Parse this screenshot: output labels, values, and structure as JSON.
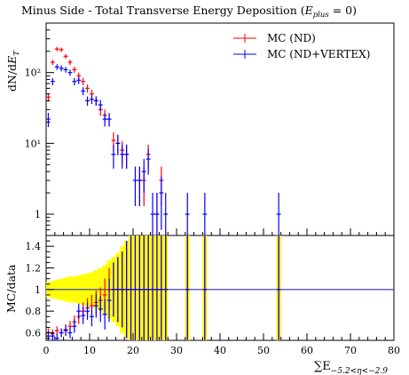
{
  "chart_data": [
    {
      "type": "scatter",
      "title": "Minus Side - Total Transverse Energy Deposition",
      "title_condition": "(E_plus = 0)",
      "ylabel": "dN/dE_T",
      "xlim": [
        0,
        80
      ],
      "ylim_log": [
        0.5,
        500
      ],
      "y_scale": "log",
      "y_ticks": [
        {
          "value": 1,
          "label": "1"
        },
        {
          "value": 10,
          "label": "10¹"
        },
        {
          "value": 100,
          "label": "10²"
        }
      ],
      "legend": {
        "placement": "top-right"
      },
      "series": [
        {
          "name": "MC (ND)",
          "color": "#ff0000",
          "points": [
            {
              "x": 0.5,
              "y": 45,
              "err": 6
            },
            {
              "x": 1.5,
              "y": 140,
              "err": 12
            },
            {
              "x": 2.5,
              "y": 215,
              "err": 15
            },
            {
              "x": 3.5,
              "y": 210,
              "err": 15
            },
            {
              "x": 4.5,
              "y": 170,
              "err": 13
            },
            {
              "x": 5.5,
              "y": 140,
              "err": 12
            },
            {
              "x": 6.5,
              "y": 110,
              "err": 11
            },
            {
              "x": 7.5,
              "y": 90,
              "err": 10
            },
            {
              "x": 8.5,
              "y": 75,
              "err": 9
            },
            {
              "x": 9.5,
              "y": 60,
              "err": 8
            },
            {
              "x": 10.5,
              "y": 50,
              "err": 7
            },
            {
              "x": 11.5,
              "y": 40,
              "err": 6
            },
            {
              "x": 12.5,
              "y": 30,
              "err": 5.5
            },
            {
              "x": 13.5,
              "y": 25,
              "err": 5
            },
            {
              "x": 14.5,
              "y": 22,
              "err": 4.7
            },
            {
              "x": 15.5,
              "y": 11,
              "err": 3.3
            },
            {
              "x": 16.5,
              "y": 10,
              "err": 3.2
            },
            {
              "x": 17.5,
              "y": 8,
              "err": 2.8
            },
            {
              "x": 18.5,
              "y": 7,
              "err": 2.6
            },
            {
              "x": 21.5,
              "y": 3,
              "err": 1.7
            },
            {
              "x": 22.5,
              "y": 3,
              "err": 1.7
            },
            {
              "x": 23.5,
              "y": 7,
              "err": 2.6
            },
            {
              "x": 25.5,
              "y": 1,
              "err": 1
            },
            {
              "x": 26.5,
              "y": 3,
              "err": 1.7
            }
          ]
        },
        {
          "name": "MC (ND+VERTEX)",
          "color": "#0000ff",
          "points": [
            {
              "x": 0.5,
              "y": 22,
              "err": 5
            },
            {
              "x": 1.5,
              "y": 75,
              "err": 9
            },
            {
              "x": 2.5,
              "y": 120,
              "err": 11
            },
            {
              "x": 3.5,
              "y": 115,
              "err": 11
            },
            {
              "x": 4.5,
              "y": 110,
              "err": 10
            },
            {
              "x": 5.5,
              "y": 100,
              "err": 10
            },
            {
              "x": 6.5,
              "y": 75,
              "err": 9
            },
            {
              "x": 7.5,
              "y": 78,
              "err": 9
            },
            {
              "x": 8.5,
              "y": 55,
              "err": 7
            },
            {
              "x": 9.5,
              "y": 40,
              "err": 6
            },
            {
              "x": 10.5,
              "y": 42,
              "err": 6
            },
            {
              "x": 11.5,
              "y": 40,
              "err": 6
            },
            {
              "x": 12.5,
              "y": 35,
              "err": 6
            },
            {
              "x": 13.5,
              "y": 22,
              "err": 4.7
            },
            {
              "x": 14.5,
              "y": 22,
              "err": 4.7
            },
            {
              "x": 15.5,
              "y": 7,
              "err": 2.6
            },
            {
              "x": 16.5,
              "y": 10,
              "err": 3.2
            },
            {
              "x": 17.5,
              "y": 7,
              "err": 2.6
            },
            {
              "x": 18.5,
              "y": 7,
              "err": 2.6
            },
            {
              "x": 20.5,
              "y": 3,
              "err": 1.7
            },
            {
              "x": 21.5,
              "y": 3,
              "err": 1.7
            },
            {
              "x": 22.5,
              "y": 4,
              "err": 2
            },
            {
              "x": 23.5,
              "y": 6,
              "err": 2.4
            },
            {
              "x": 24.5,
              "y": 1,
              "err": 1
            },
            {
              "x": 25.5,
              "y": 1,
              "err": 1
            },
            {
              "x": 26.5,
              "y": 2,
              "err": 1.4
            },
            {
              "x": 27.5,
              "y": 1,
              "err": 1
            },
            {
              "x": 32.5,
              "y": 1,
              "err": 1
            },
            {
              "x": 36.5,
              "y": 1,
              "err": 1
            },
            {
              "x": 53.5,
              "y": 1,
              "err": 1
            }
          ]
        }
      ]
    },
    {
      "type": "scatter",
      "ylabel": "MC/data",
      "xlabel": "∑E",
      "xlabel_subscript": "−5.2<η<−2.9",
      "xlim": [
        0,
        80
      ],
      "ylim": [
        0.53,
        1.5
      ],
      "x_ticks": [
        0,
        10,
        20,
        30,
        40,
        50,
        60,
        70,
        80
      ],
      "y_ticks": [
        0.6,
        0.8,
        1,
        1.2,
        1.4
      ],
      "reference_line": 1,
      "band_color": "#ffff00",
      "band": [
        {
          "x": 0.5,
          "lo": 0.93,
          "hi": 1.07
        },
        {
          "x": 1.5,
          "lo": 0.92,
          "hi": 1.08
        },
        {
          "x": 2.5,
          "lo": 0.91,
          "hi": 1.09
        },
        {
          "x": 3.5,
          "lo": 0.9,
          "hi": 1.1
        },
        {
          "x": 4.5,
          "lo": 0.89,
          "hi": 1.11
        },
        {
          "x": 5.5,
          "lo": 0.88,
          "hi": 1.12
        },
        {
          "x": 6.5,
          "lo": 0.88,
          "hi": 1.12
        },
        {
          "x": 7.5,
          "lo": 0.87,
          "hi": 1.13
        },
        {
          "x": 8.5,
          "lo": 0.86,
          "hi": 1.14
        },
        {
          "x": 9.5,
          "lo": 0.85,
          "hi": 1.15
        },
        {
          "x": 10.5,
          "lo": 0.84,
          "hi": 1.16
        },
        {
          "x": 11.5,
          "lo": 0.82,
          "hi": 1.18
        },
        {
          "x": 12.5,
          "lo": 0.8,
          "hi": 1.2
        },
        {
          "x": 13.5,
          "lo": 0.77,
          "hi": 1.23
        },
        {
          "x": 14.5,
          "lo": 0.73,
          "hi": 1.27
        },
        {
          "x": 15.5,
          "lo": 0.7,
          "hi": 1.3
        },
        {
          "x": 16.5,
          "lo": 0.66,
          "hi": 1.34
        },
        {
          "x": 17.5,
          "lo": 0.6,
          "hi": 1.4
        },
        {
          "x": 18.5,
          "lo": 0.55,
          "hi": 1.45
        },
        {
          "x": 19.5,
          "lo": 0.53,
          "hi": 1.5
        },
        {
          "x": 20.5,
          "lo": 0.53,
          "hi": 1.5
        },
        {
          "x": 21.5,
          "lo": 0.53,
          "hi": 1.5
        },
        {
          "x": 22.5,
          "lo": 0.53,
          "hi": 1.5
        },
        {
          "x": 23.5,
          "lo": 0.53,
          "hi": 1.5
        },
        {
          "x": 24.5,
          "lo": 0.53,
          "hi": 1.5
        },
        {
          "x": 25.5,
          "lo": 0.53,
          "hi": 1.5
        },
        {
          "x": 26.5,
          "lo": 0.53,
          "hi": 1.5
        },
        {
          "x": 27.5,
          "lo": 0.53,
          "hi": 1.5
        },
        {
          "x": 32.5,
          "lo": 0.53,
          "hi": 1.5
        },
        {
          "x": 36.5,
          "lo": 0.53,
          "hi": 1.5
        },
        {
          "x": 53.5,
          "lo": 0.53,
          "hi": 1.5
        }
      ],
      "series": [
        {
          "name": "MC (ND)",
          "color": "#ff0000",
          "points": [
            {
              "x": 0.5,
              "y": 0.6,
              "err": 0.04
            },
            {
              "x": 1.5,
              "y": 0.59,
              "err": 0.04
            },
            {
              "x": 2.5,
              "y": 0.62,
              "err": 0.04
            },
            {
              "x": 3.5,
              "y": 0.6,
              "err": 0.04
            },
            {
              "x": 4.5,
              "y": 0.63,
              "err": 0.05
            },
            {
              "x": 5.5,
              "y": 0.66,
              "err": 0.05
            },
            {
              "x": 6.5,
              "y": 0.7,
              "err": 0.06
            },
            {
              "x": 7.5,
              "y": 0.75,
              "err": 0.07
            },
            {
              "x": 8.5,
              "y": 0.8,
              "err": 0.08
            },
            {
              "x": 9.5,
              "y": 0.83,
              "err": 0.09
            },
            {
              "x": 10.5,
              "y": 0.85,
              "err": 0.1
            },
            {
              "x": 11.5,
              "y": 0.88,
              "err": 0.11
            },
            {
              "x": 12.5,
              "y": 0.9,
              "err": 0.12
            },
            {
              "x": 13.5,
              "y": 0.95,
              "err": 0.15
            },
            {
              "x": 14.5,
              "y": 1.0,
              "err": 0.2
            },
            {
              "x": 15.5,
              "y": 1.0,
              "err": 0.25
            },
            {
              "x": 16.5,
              "y": 1.0,
              "err": 0.3
            },
            {
              "x": 17.5,
              "y": 1.0,
              "err": 0.35
            },
            {
              "x": 18.5,
              "y": 1.0,
              "err": 0.45
            },
            {
              "x": 19.5,
              "y": 1.0,
              "err": 0.5
            },
            {
              "x": 20.5,
              "y": 1.0,
              "err": 0.5
            },
            {
              "x": 21.5,
              "y": 1.0,
              "err": 0.5
            },
            {
              "x": 22.5,
              "y": 1.0,
              "err": 0.5
            },
            {
              "x": 23.5,
              "y": 1.0,
              "err": 0.5
            },
            {
              "x": 24.5,
              "y": 1.0,
              "err": 0.5
            },
            {
              "x": 25.5,
              "y": 1.0,
              "err": 0.5
            },
            {
              "x": 26.5,
              "y": 1.0,
              "err": 0.5
            },
            {
              "x": 27.5,
              "y": 1.0,
              "err": 0.5
            },
            {
              "x": 32.5,
              "y": 1.0,
              "err": 0.5
            },
            {
              "x": 36.5,
              "y": 1.0,
              "err": 0.5
            },
            {
              "x": 53.5,
              "y": 1.0,
              "err": 0.5
            }
          ]
        },
        {
          "name": "MC (ND+VERTEX)",
          "color": "#0000ff",
          "points": [
            {
              "x": 0.5,
              "y": 0.57,
              "err": 0.04
            },
            {
              "x": 1.5,
              "y": 0.57,
              "err": 0.04
            },
            {
              "x": 2.5,
              "y": 0.55,
              "err": 0.04
            },
            {
              "x": 3.5,
              "y": 0.6,
              "err": 0.04
            },
            {
              "x": 4.5,
              "y": 0.62,
              "err": 0.05
            },
            {
              "x": 5.5,
              "y": 0.6,
              "err": 0.05
            },
            {
              "x": 6.5,
              "y": 0.66,
              "err": 0.06
            },
            {
              "x": 7.5,
              "y": 0.8,
              "err": 0.07
            },
            {
              "x": 8.5,
              "y": 0.76,
              "err": 0.08
            },
            {
              "x": 9.5,
              "y": 0.8,
              "err": 0.08
            },
            {
              "x": 10.5,
              "y": 0.75,
              "err": 0.09
            },
            {
              "x": 11.5,
              "y": 0.85,
              "err": 0.11
            },
            {
              "x": 12.5,
              "y": 0.82,
              "err": 0.12
            },
            {
              "x": 13.5,
              "y": 0.77,
              "err": 0.14
            },
            {
              "x": 14.5,
              "y": 0.9,
              "err": 0.2
            },
            {
              "x": 15.5,
              "y": 1.0,
              "err": 0.25
            },
            {
              "x": 16.5,
              "y": 1.0,
              "err": 0.3
            },
            {
              "x": 17.5,
              "y": 1.0,
              "err": 0.35
            },
            {
              "x": 18.5,
              "y": 1.0,
              "err": 0.45
            },
            {
              "x": 19.5,
              "y": 1.0,
              "err": 0.5
            },
            {
              "x": 20.5,
              "y": 1.0,
              "err": 0.5
            },
            {
              "x": 21.5,
              "y": 1.0,
              "err": 0.5
            },
            {
              "x": 22.5,
              "y": 1.0,
              "err": 0.5
            },
            {
              "x": 23.5,
              "y": 1.0,
              "err": 0.5
            },
            {
              "x": 24.5,
              "y": 1.0,
              "err": 0.5
            },
            {
              "x": 25.5,
              "y": 1.0,
              "err": 0.5
            },
            {
              "x": 26.5,
              "y": 1.0,
              "err": 0.5
            },
            {
              "x": 27.5,
              "y": 1.0,
              "err": 0.5
            },
            {
              "x": 32.5,
              "y": 1.0,
              "err": 0.5
            },
            {
              "x": 36.5,
              "y": 1.0,
              "err": 0.5
            },
            {
              "x": 53.5,
              "y": 1.0,
              "err": 0.5
            }
          ]
        }
      ]
    }
  ]
}
